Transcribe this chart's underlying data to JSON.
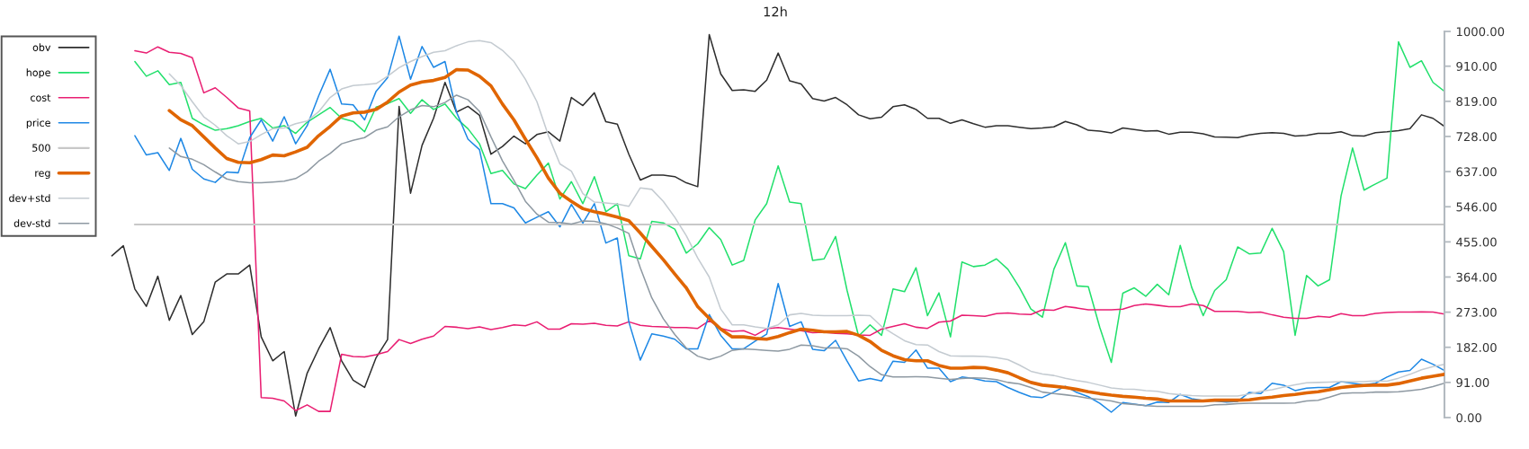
{
  "chart_data": {
    "type": "line",
    "title": "12h",
    "legend": "top left",
    "tick_labels": "y",
    "categories": [
      null,
      null,
      null,
      null,
      null,
      null,
      null,
      null,
      null,
      null,
      null,
      null,
      null,
      null,
      null,
      null,
      null,
      null,
      null,
      null,
      null,
      null,
      null,
      null,
      null,
      null,
      null,
      null,
      null,
      null,
      null,
      null,
      null,
      null,
      null,
      null,
      null,
      null,
      null,
      null,
      null,
      null,
      null,
      null,
      null,
      null,
      null,
      null,
      null,
      null,
      null,
      null,
      null,
      null,
      null,
      null,
      null,
      null,
      null,
      null,
      null,
      null,
      null,
      null,
      null,
      null,
      null,
      null,
      null,
      null,
      null,
      null,
      null,
      null,
      null,
      null,
      null,
      null,
      null,
      null,
      null,
      null,
      null,
      null,
      null,
      null,
      null,
      null,
      null,
      null,
      null,
      null,
      null,
      null,
      null,
      null,
      null,
      null,
      null,
      null,
      null,
      null,
      null,
      null,
      null,
      null,
      null,
      null,
      null,
      null,
      null,
      null,
      null,
      null,
      null,
      null,
      null
    ],
    "ylim": [
      0,
      1000
    ],
    "yticks": [
      {
        "value": 0,
        "label": "0.00"
      },
      {
        "value": 91,
        "label": "91.00"
      },
      {
        "value": 182,
        "label": "182.00"
      },
      {
        "value": 273,
        "label": "273.00"
      },
      {
        "value": 364,
        "label": "364.00"
      },
      {
        "value": 455,
        "label": "455.00"
      },
      {
        "value": 546,
        "label": "546.00"
      },
      {
        "value": 637,
        "label": "637.00"
      },
      {
        "value": 728,
        "label": "728.00"
      },
      {
        "value": 819,
        "label": "819.00"
      },
      {
        "value": 910,
        "label": "910.00"
      },
      {
        "value": 1000,
        "label": "1000.00"
      }
    ],
    "series": [
      {
        "name": "obv",
        "color": "#2e2e2e",
        "values": [
          419,
          445,
          333,
          288,
          366,
          252,
          316,
          215,
          248,
          351,
          372,
          372,
          395,
          209,
          147,
          171,
          4,
          115,
          178,
          233,
          147,
          97,
          78,
          155,
          202,
          806,
          581,
          705,
          775,
          868,
          791,
          806,
          783,
          682,
          702,
          729,
          709,
          733,
          740,
          716,
          829,
          808,
          841,
          766,
          760,
          682,
          615,
          628,
          628,
          624,
          608,
          598,
          992,
          890,
          847,
          849,
          845,
          874,
          944,
          872,
          864,
          826,
          820,
          829,
          810,
          784,
          774,
          778,
          805,
          810,
          798,
          775,
          775,
          762,
          771,
          761,
          752,
          756,
          756,
          752,
          748,
          750,
          753,
          767,
          758,
          744,
          742,
          737,
          750,
          746,
          742,
          743,
          734,
          739,
          739,
          735,
          727,
          726,
          725,
          732,
          736,
          738,
          736,
          729,
          731,
          736,
          736,
          740,
          730,
          729,
          738,
          740,
          743,
          748,
          784,
          775,
          754
        ]
      },
      {
        "name": "hope",
        "color": "#22e06c",
        "values": [
          null,
          null,
          922,
          884,
          898,
          862,
          868,
          775,
          758,
          744,
          748,
          756,
          767,
          775,
          750,
          756,
          736,
          765,
          784,
          803,
          775,
          767,
          740,
          804,
          813,
          826,
          788,
          823,
          798,
          812,
          775,
          748,
          709,
          632,
          640,
          605,
          593,
          628,
          659,
          566,
          611,
          554,
          624,
          533,
          554,
          419,
          411,
          508,
          504,
          488,
          426,
          450,
          492,
          461,
          395,
          407,
          512,
          554,
          652,
          558,
          554,
          407,
          411,
          469,
          329,
          211,
          240,
          213,
          333,
          326,
          388,
          264,
          323,
          209,
          403,
          391,
          395,
          411,
          384,
          337,
          281,
          260,
          384,
          453,
          341,
          339,
          233,
          143,
          322,
          336,
          314,
          345,
          318,
          446,
          337,
          264,
          329,
          357,
          442,
          424,
          426,
          490,
          430,
          213,
          368,
          341,
          357,
          574,
          698,
          589,
          605,
          620,
          973,
          907,
          924,
          868,
          845
        ]
      },
      {
        "name": "cost",
        "color": "#e91e72",
        "values": [
          null,
          null,
          950,
          944,
          960,
          946,
          943,
          932,
          841,
          854,
          829,
          802,
          794,
          52,
          50,
          43,
          18,
          33,
          16,
          16,
          164,
          158,
          157,
          163,
          171,
          202,
          192,
          203,
          211,
          236,
          234,
          230,
          235,
          228,
          233,
          240,
          238,
          248,
          229,
          229,
          243,
          242,
          244,
          239,
          237,
          248,
          239,
          236,
          235,
          233,
          233,
          231,
          251,
          231,
          223,
          225,
          213,
          230,
          233,
          229,
          225,
          220,
          221,
          218,
          217,
          214,
          213,
          229,
          236,
          243,
          234,
          231,
          247,
          250,
          265,
          264,
          262,
          269,
          271,
          268,
          267,
          279,
          278,
          288,
          284,
          279,
          279,
          279,
          281,
          290,
          294,
          291,
          287,
          287,
          294,
          290,
          275,
          275,
          275,
          272,
          273,
          266,
          260,
          257,
          257,
          262,
          260,
          269,
          264,
          264,
          270,
          272,
          273,
          273,
          274,
          273,
          268
        ]
      },
      {
        "name": "price",
        "color": "#1e88e5",
        "values": [
          null,
          null,
          730,
          680,
          686,
          640,
          723,
          643,
          618,
          609,
          636,
          634,
          725,
          771,
          716,
          779,
          709,
          756,
          833,
          902,
          812,
          810,
          771,
          845,
          880,
          988,
          876,
          961,
          907,
          922,
          791,
          721,
          694,
          554,
          554,
          543,
          504,
          519,
          533,
          494,
          552,
          504,
          554,
          452,
          465,
          248,
          149,
          217,
          211,
          203,
          178,
          178,
          267,
          213,
          178,
          178,
          198,
          216,
          347,
          236,
          248,
          177,
          173,
          200,
          146,
          95,
          101,
          95,
          146,
          143,
          175,
          128,
          128,
          93,
          105,
          101,
          95,
          93,
          78,
          65,
          54,
          52,
          66,
          81,
          65,
          54,
          37,
          14,
          39,
          35,
          31,
          40,
          39,
          60,
          49,
          44,
          43,
          40,
          42,
          65,
          62,
          89,
          84,
          70,
          76,
          78,
          78,
          93,
          89,
          85,
          89,
          105,
          118,
          122,
          151,
          138,
          122
        ]
      },
      {
        "name": "500",
        "color": "#c8c8c8",
        "values": [
          null,
          null,
          500,
          500,
          500,
          500,
          500,
          500,
          500,
          500,
          500,
          500,
          500,
          500,
          500,
          500,
          500,
          500,
          500,
          500,
          500,
          500,
          500,
          500,
          500,
          500,
          500,
          500,
          500,
          500,
          500,
          500,
          500,
          500,
          500,
          500,
          500,
          500,
          500,
          500,
          500,
          500,
          500,
          500,
          500,
          500,
          500,
          500,
          500,
          500,
          500,
          500,
          500,
          500,
          500,
          500,
          500,
          500,
          500,
          500,
          500,
          500,
          500,
          500,
          500,
          500,
          500,
          500,
          500,
          500,
          500,
          500,
          500,
          500,
          500,
          500,
          500,
          500,
          500,
          500,
          500,
          500,
          500,
          500,
          500,
          500,
          500,
          500,
          500,
          500,
          500,
          500,
          500,
          500,
          500,
          500,
          500,
          500,
          500,
          500,
          500,
          500,
          500,
          500,
          500,
          500,
          500,
          500,
          500,
          500,
          500,
          500,
          500,
          500,
          500,
          500,
          500
        ]
      },
      {
        "name": "reg",
        "color": "#e06500",
        "values": [
          null,
          null,
          null,
          null,
          null,
          795,
          771,
          756,
          727,
          698,
          671,
          661,
          660,
          668,
          680,
          678,
          688,
          700,
          730,
          754,
          781,
          789,
          791,
          798,
          817,
          843,
          861,
          869,
          873,
          881,
          901,
          900,
          884,
          859,
          812,
          771,
          721,
          673,
          620,
          581,
          560,
          541,
          533,
          527,
          519,
          510,
          478,
          443,
          409,
          372,
          336,
          287,
          257,
          229,
          209,
          209,
          205,
          203,
          210,
          220,
          229,
          226,
          222,
          222,
          223,
          213,
          197,
          174,
          160,
          150,
          147,
          147,
          135,
          128,
          128,
          130,
          129,
          123,
          116,
          103,
          91,
          84,
          81,
          78,
          73,
          67,
          62,
          58,
          55,
          53,
          50,
          48,
          43,
          43,
          43,
          43,
          45,
          45,
          45,
          46,
          50,
          53,
          57,
          60,
          64,
          67,
          72,
          78,
          81,
          83,
          84,
          84,
          88,
          95,
          102,
          107,
          112
        ]
      },
      {
        "name": "dev+std",
        "color": "#c4cbd1",
        "values": [
          null,
          null,
          null,
          null,
          null,
          890,
          860,
          818,
          779,
          757,
          730,
          709,
          715,
          733,
          748,
          750,
          761,
          768,
          792,
          829,
          851,
          860,
          862,
          865,
          884,
          906,
          922,
          935,
          946,
          950,
          963,
          973,
          976,
          971,
          951,
          922,
          876,
          818,
          730,
          657,
          638,
          580,
          558,
          556,
          553,
          547,
          595,
          591,
          560,
          519,
          471,
          413,
          364,
          281,
          240,
          240,
          235,
          231,
          240,
          266,
          270,
          265,
          264,
          264,
          264,
          265,
          264,
          236,
          217,
          199,
          189,
          188,
          171,
          160,
          159,
          159,
          158,
          155,
          150,
          136,
          120,
          113,
          109,
          102,
          96,
          91,
          84,
          77,
          74,
          73,
          70,
          68,
          62,
          59,
          57,
          56,
          56,
          56,
          56,
          61,
          68,
          72,
          79,
          85,
          90,
          91,
          92,
          93,
          93,
          93,
          95,
          94,
          102,
          112,
          124,
          132,
          138
        ]
      },
      {
        "name": "dev-std",
        "color": "#8e99a2",
        "values": [
          null,
          null,
          null,
          null,
          null,
          698,
          676,
          669,
          655,
          636,
          618,
          611,
          608,
          608,
          610,
          612,
          619,
          637,
          664,
          684,
          709,
          718,
          725,
          744,
          753,
          779,
          797,
          808,
          805,
          816,
          835,
          823,
          793,
          727,
          665,
          614,
          560,
          527,
          506,
          505,
          501,
          509,
          508,
          502,
          491,
          477,
          388,
          310,
          256,
          215,
          180,
          159,
          150,
          159,
          174,
          178,
          176,
          174,
          172,
          177,
          188,
          186,
          180,
          181,
          178,
          159,
          132,
          111,
          105,
          105,
          106,
          105,
          102,
          99,
          101,
          103,
          102,
          98,
          91,
          87,
          78,
          66,
          62,
          59,
          55,
          50,
          47,
          43,
          36,
          34,
          31,
          29,
          29,
          29,
          29,
          29,
          33,
          34,
          36,
          37,
          37,
          37,
          37,
          38,
          43,
          45,
          53,
          62,
          64,
          64,
          66,
          66,
          67,
          70,
          73,
          80,
          89
        ]
      }
    ]
  }
}
